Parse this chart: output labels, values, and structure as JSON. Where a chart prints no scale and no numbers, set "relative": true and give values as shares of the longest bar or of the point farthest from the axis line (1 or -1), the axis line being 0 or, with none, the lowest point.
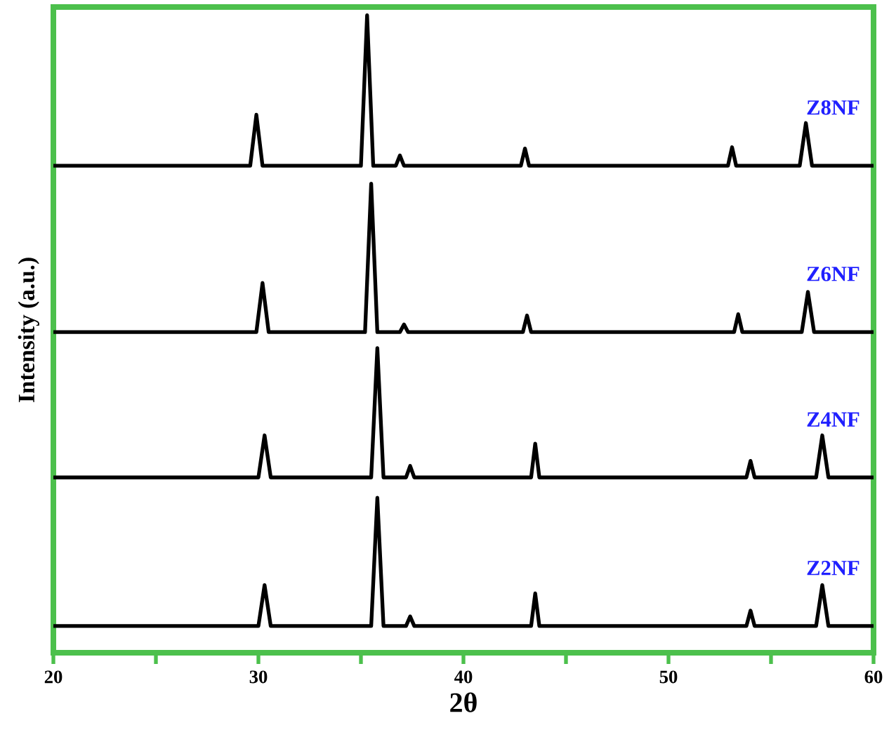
{
  "chart_data": {
    "type": "line",
    "relative": true,
    "xlabel": "2θ",
    "ylabel": "Intensity (a.u.)",
    "xlim": [
      20,
      60
    ],
    "xticks": [
      20,
      {
        "value": 25,
        "label": null
      },
      30,
      {
        "value": 35,
        "label": null
      },
      40,
      {
        "value": 45,
        "label": null
      },
      50,
      {
        "value": 55,
        "label": null
      },
      60
    ],
    "legend": false,
    "marker": "none",
    "line_style": "solid",
    "series": [
      {
        "name": "Z8NF",
        "color": "#000000",
        "x": [
          20,
          29.6,
          29.9,
          30.2,
          35.0,
          35.3,
          35.6,
          36.7,
          36.9,
          37.1,
          42.8,
          43.0,
          43.2,
          52.9,
          53.1,
          53.3,
          56.4,
          56.7,
          57.0,
          60
        ],
        "values": [
          0.764,
          0.764,
          0.844,
          0.764,
          0.764,
          1.0,
          0.764,
          0.764,
          0.78,
          0.764,
          0.764,
          0.791,
          0.764,
          0.764,
          0.793,
          0.764,
          0.764,
          0.831,
          0.764,
          0.764
        ]
      },
      {
        "name": "Z6NF",
        "color": "#000000",
        "x": [
          20,
          29.9,
          30.2,
          30.5,
          35.2,
          35.5,
          35.8,
          36.9,
          37.1,
          37.3,
          42.9,
          43.1,
          43.3,
          53.2,
          53.4,
          53.6,
          56.5,
          56.8,
          57.1,
          60
        ],
        "values": [
          0.503,
          0.503,
          0.58,
          0.503,
          0.503,
          0.736,
          0.503,
          0.503,
          0.515,
          0.503,
          0.503,
          0.529,
          0.503,
          0.503,
          0.531,
          0.503,
          0.503,
          0.566,
          0.503,
          0.503
        ]
      },
      {
        "name": "Z4NF",
        "color": "#000000",
        "x": [
          20,
          30.0,
          30.3,
          30.6,
          35.5,
          35.8,
          36.1,
          37.2,
          37.4,
          37.6,
          43.3,
          43.5,
          43.7,
          53.8,
          54.0,
          54.2,
          57.2,
          57.5,
          57.8,
          60
        ],
        "values": [
          0.275,
          0.275,
          0.341,
          0.275,
          0.275,
          0.478,
          0.275,
          0.275,
          0.293,
          0.275,
          0.275,
          0.328,
          0.275,
          0.275,
          0.301,
          0.275,
          0.275,
          0.341,
          0.275,
          0.275
        ]
      },
      {
        "name": "Z2NF",
        "color": "#000000",
        "x": [
          20,
          30.0,
          30.3,
          30.6,
          35.5,
          35.8,
          36.1,
          37.2,
          37.4,
          37.6,
          43.3,
          43.5,
          43.7,
          53.8,
          54.0,
          54.2,
          57.2,
          57.5,
          57.8,
          60
        ],
        "values": [
          0.042,
          0.042,
          0.106,
          0.042,
          0.042,
          0.243,
          0.042,
          0.042,
          0.057,
          0.042,
          0.042,
          0.093,
          0.042,
          0.042,
          0.066,
          0.042,
          0.042,
          0.106,
          0.042,
          0.042
        ]
      }
    ]
  }
}
